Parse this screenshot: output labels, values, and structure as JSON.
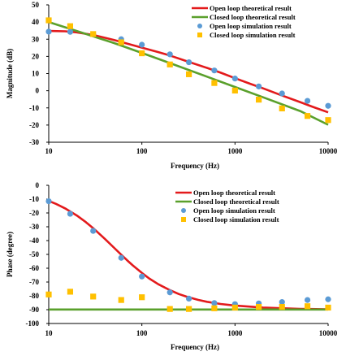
{
  "chart_data": [
    {
      "type": "line",
      "xlabel": "Frequency (Hz)",
      "ylabel": "Magnitude (dB)",
      "xscale": "log",
      "xlim": [
        10,
        10000
      ],
      "ylim": [
        -30,
        50
      ],
      "x_ticks": [
        10,
        100,
        1000,
        10000
      ],
      "x_tick_labels": [
        "10",
        "100",
        "1000",
        "10000"
      ],
      "y_ticks": [
        -30,
        -20,
        -10,
        0,
        10,
        20,
        30,
        40,
        50
      ],
      "grid": false,
      "legend_position": "top-right",
      "series": [
        {
          "name": "Open loop theoretical result",
          "style": "line",
          "color": "#e31a1c",
          "x": [
            10,
            15,
            20,
            30,
            50,
            70,
            100,
            150,
            200,
            300,
            500,
            700,
            1000,
            1500,
            2000,
            3000,
            5000,
            7000,
            10000
          ],
          "y": [
            34.8,
            34.6,
            34.0,
            32.5,
            29.6,
            27.4,
            25.1,
            22.5,
            20.5,
            17.3,
            13.3,
            10.5,
            7.3,
            3.8,
            1.4,
            -2.2,
            -6.6,
            -9.6,
            -12.6
          ]
        },
        {
          "name": "Closed loop theoretical result",
          "style": "line",
          "color": "#5aa02c",
          "x": [
            10,
            20,
            50,
            100,
            200,
            500,
            1000,
            2000,
            5000,
            10000
          ],
          "y": [
            40.0,
            34.8,
            27.8,
            22.0,
            16.1,
            8.2,
            2.2,
            -3.8,
            -11.8,
            -19.8
          ]
        },
        {
          "name": "Open loop simulation result",
          "style": "marker-circle",
          "color": "#5b9bd5",
          "x": [
            10,
            17,
            30,
            60,
            100,
            200,
            320,
            600,
            1000,
            1800,
            3200,
            6000,
            10000
          ],
          "y": [
            34.4,
            34.3,
            32.8,
            30.0,
            26.8,
            21.2,
            16.6,
            11.8,
            7.1,
            2.5,
            -1.6,
            -5.9,
            -8.8
          ]
        },
        {
          "name": "Closed loop simulation result",
          "style": "marker-square",
          "color": "#ffc000",
          "x": [
            10,
            17,
            30,
            60,
            100,
            200,
            320,
            600,
            1000,
            1800,
            3200,
            6000,
            10000
          ],
          "y": [
            41.0,
            37.6,
            33.0,
            28.2,
            21.8,
            15.3,
            9.6,
            4.5,
            0.1,
            -5.2,
            -10.3,
            -14.7,
            -17.1
          ]
        }
      ]
    },
    {
      "type": "line",
      "xlabel": "Frequency (Hz)",
      "ylabel": "Phase (degree)",
      "xscale": "log",
      "xlim": [
        10,
        10000
      ],
      "ylim": [
        -100,
        0
      ],
      "x_ticks": [
        10,
        100,
        1000,
        10000
      ],
      "x_tick_labels": [
        "10",
        "100",
        "1000",
        "10000"
      ],
      "y_ticks": [
        -100,
        -90,
        -80,
        -70,
        -60,
        -50,
        -40,
        -30,
        -20,
        -10,
        0
      ],
      "grid": false,
      "legend_position": "top-right",
      "series": [
        {
          "name": "Open loop theoretical result",
          "style": "line",
          "color": "#e31a1c",
          "x": [
            10,
            12,
            15,
            20,
            25,
            30,
            40,
            50,
            60,
            70,
            80,
            100,
            120,
            150,
            200,
            250,
            300,
            400,
            500,
            700,
            1000,
            2000,
            5000,
            10000
          ],
          "y": [
            -11.3,
            -13.5,
            -16.7,
            -21.8,
            -26.6,
            -31.0,
            -38.7,
            -45.0,
            -50.2,
            -54.5,
            -58.0,
            -63.4,
            -67.4,
            -71.6,
            -75.9,
            -78.7,
            -80.5,
            -82.9,
            -84.3,
            -85.9,
            -87.0,
            -88.5,
            -89.4,
            -89.7
          ]
        },
        {
          "name": "Closed loop theoretical result",
          "style": "line",
          "color": "#5aa02c",
          "x": [
            10,
            10000
          ],
          "y": [
            -89.9,
            -89.9
          ]
        },
        {
          "name": "Open loop simulation result",
          "style": "marker-circle",
          "color": "#5b9bd5",
          "x": [
            10,
            17,
            30,
            60,
            100,
            200,
            320,
            600,
            1000,
            1800,
            3200,
            6000,
            10000
          ],
          "y": [
            -11.5,
            -20.6,
            -33.0,
            -52.5,
            -66.0,
            -77.5,
            -82.0,
            -85.2,
            -86.0,
            -85.5,
            -84.5,
            -83.0,
            -82.5
          ]
        },
        {
          "name": "Closed loop simulation result",
          "style": "marker-square",
          "color": "#ffc000",
          "x": [
            10,
            17,
            30,
            60,
            100,
            200,
            320,
            600,
            1000,
            1800,
            3200,
            6000,
            10000
          ],
          "y": [
            -79.0,
            -77.0,
            -80.5,
            -83.0,
            -81.0,
            -89.5,
            -89.5,
            -89.0,
            -88.5,
            -88.0,
            -88.0,
            -87.5,
            -88.5
          ]
        }
      ]
    }
  ]
}
